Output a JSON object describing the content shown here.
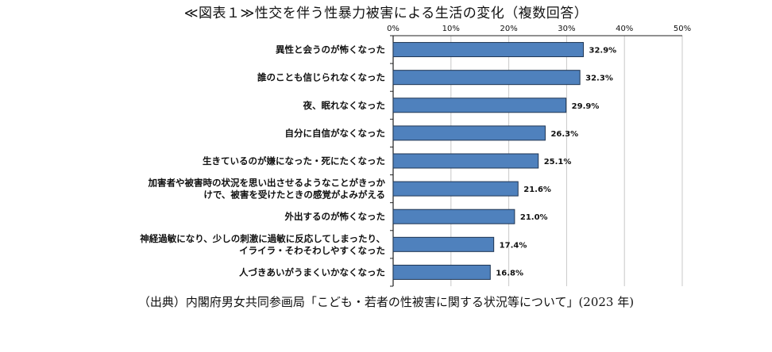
{
  "page": {
    "title": "≪図表１≫性交を伴う性暴力被害による生活の変化（複数回答）",
    "source": "（出典）内閣府男女共同参画局「こども・若者の性被害に関する状況等について」(2023 年)"
  },
  "chart_data": {
    "type": "bar",
    "orientation": "horizontal",
    "title": "≪図表１≫性交を伴う性暴力被害による生活の変化（複数回答）",
    "xlabel": "",
    "ylabel": "",
    "xlim": [
      0,
      50
    ],
    "x_ticks": [
      "0%",
      "10%",
      "20%",
      "30%",
      "40%",
      "50%"
    ],
    "x_tick_values": [
      0,
      10,
      20,
      30,
      40,
      50
    ],
    "x_axis_position": "top",
    "grid": true,
    "bar_color": "#4F81BD",
    "categories": [
      [
        "異性と会うのが怖くなった"
      ],
      [
        "誰のことも信じられなくなった"
      ],
      [
        "夜、眠れなくなった"
      ],
      [
        "自分に自信がなくなった"
      ],
      [
        "生きているのが嫌になった・死にたくなった"
      ],
      [
        "加害者や被害時の状況を思い出させるようなことがきっか",
        "けで、被害を受けたときの感覚がよみがえる"
      ],
      [
        "外出するのが怖くなった"
      ],
      [
        "神経過敏になり、少しの刺激に過敏に反応してしまったり、",
        "イライラ・そわそわしやすくなった"
      ],
      [
        "人づきあいがうまくいかなくなった"
      ]
    ],
    "values": [
      32.9,
      32.3,
      29.9,
      26.3,
      25.1,
      21.6,
      21.0,
      17.4,
      16.8
    ],
    "value_labels": [
      "32.9%",
      "32.3%",
      "29.9%",
      "26.3%",
      "25.1%",
      "21.6%",
      "21.0%",
      "17.4%",
      "16.8%"
    ]
  }
}
